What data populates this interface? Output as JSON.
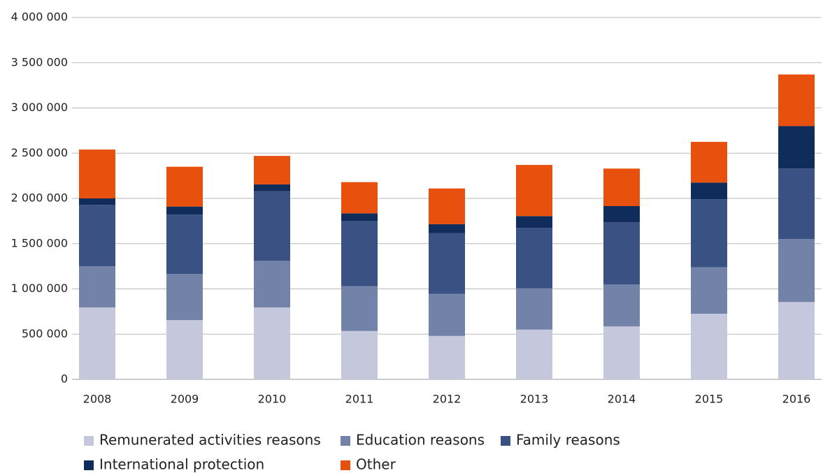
{
  "chart_data": {
    "type": "bar",
    "stacked": true,
    "categories": [
      "2008",
      "2009",
      "2010",
      "2011",
      "2012",
      "2013",
      "2014",
      "2015",
      "2016"
    ],
    "series": [
      {
        "name": "Remunerated activities reasons",
        "color": "#c5c8dd",
        "values": [
          795000,
          655000,
          795000,
          535000,
          480000,
          550000,
          585000,
          725000,
          855000
        ]
      },
      {
        "name": "Education reasons",
        "color": "#7282a8",
        "values": [
          455000,
          510000,
          515000,
          495000,
          465000,
          455000,
          465000,
          515000,
          695000
        ]
      },
      {
        "name": "Family reasons",
        "color": "#3a5283",
        "values": [
          680000,
          655000,
          770000,
          720000,
          670000,
          670000,
          685000,
          750000,
          780000
        ]
      },
      {
        "name": "International protection",
        "color": "#0f2c5a",
        "values": [
          70000,
          90000,
          75000,
          85000,
          100000,
          130000,
          180000,
          185000,
          470000
        ]
      },
      {
        "name": "Other",
        "color": "#e8500e",
        "values": [
          540000,
          440000,
          315000,
          345000,
          395000,
          565000,
          415000,
          450000,
          570000
        ]
      }
    ],
    "ylim": [
      0,
      4000000
    ],
    "yticks": [
      0,
      {
        "value": 500000,
        "label": "500 000"
      },
      {
        "value": 1000000,
        "label": "1 000 000"
      },
      {
        "value": 1500000,
        "label": "1 500 000"
      },
      {
        "value": 2000000,
        "label": "2 000 000"
      },
      {
        "value": 2500000,
        "label": "2 500 000"
      },
      {
        "value": 3000000,
        "label": "3 000 000"
      },
      {
        "value": 3500000,
        "label": "3 500 000"
      },
      {
        "value": 4000000,
        "label": "4 000 000"
      }
    ],
    "grid": true,
    "legend": "bottom"
  }
}
